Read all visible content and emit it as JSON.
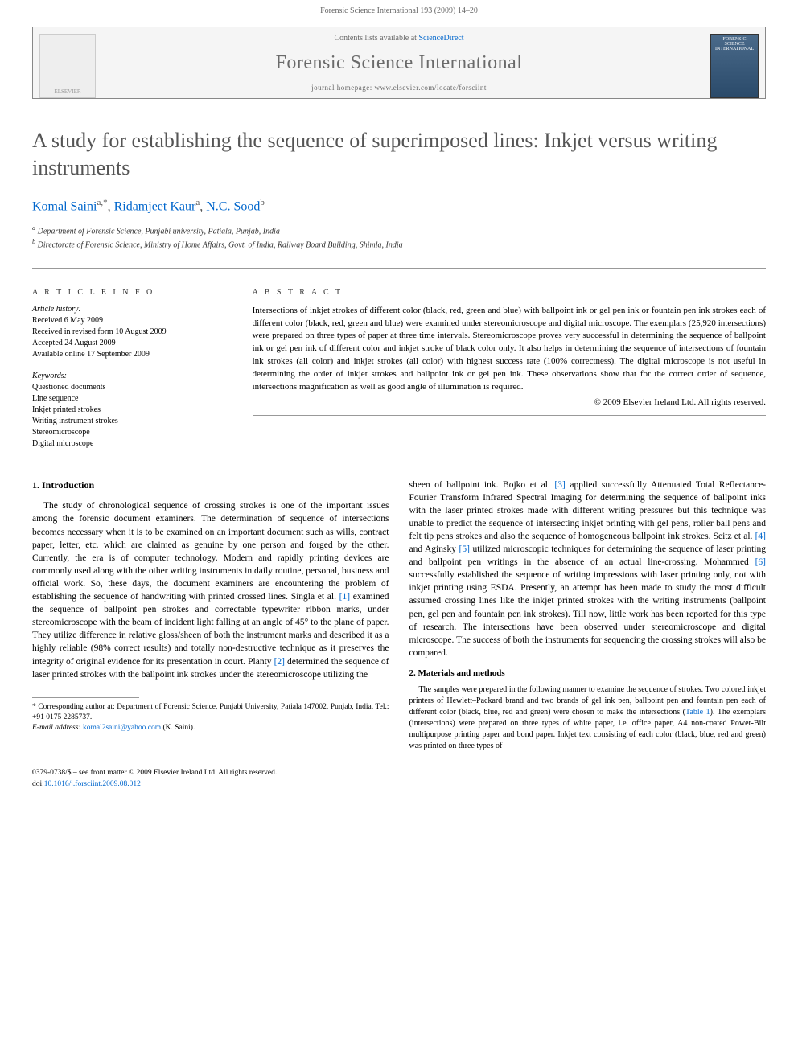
{
  "header": {
    "running_head": "Forensic Science International 193 (2009) 14–20",
    "contents_text": "Contents lists available at",
    "contents_link": "ScienceDirect",
    "journal_name": "Forensic Science International",
    "homepage_label": "journal homepage: www.elsevier.com/locate/forsciint",
    "elsevier_text": "ELSEVIER",
    "cover_text": "FORENSIC SCIENCE INTERNATIONAL"
  },
  "title": "A study for establishing the sequence of superimposed lines: Inkjet versus writing instruments",
  "authors": {
    "a1_name": "Komal Saini",
    "a1_sup": "a,*",
    "a2_name": "Ridamjeet Kaur",
    "a2_sup": "a",
    "a3_name": "N.C. Sood",
    "a3_sup": "b"
  },
  "affiliations": {
    "a": "Department of Forensic Science, Punjabi university, Patiala, Punjab, India",
    "b": "Directorate of Forensic Science, Ministry of Home Affairs, Govt. of India, Railway Board Building, Shimla, India"
  },
  "article_info": {
    "label": "A R T I C L E   I N F O",
    "history_label": "Article history:",
    "received": "Received 6 May 2009",
    "revised": "Received in revised form 10 August 2009",
    "accepted": "Accepted 24 August 2009",
    "online": "Available online 17 September 2009",
    "keywords_label": "Keywords:",
    "kw1": "Questioned documents",
    "kw2": "Line sequence",
    "kw3": "Inkjet printed strokes",
    "kw4": "Writing instrument strokes",
    "kw5": "Stereomicroscope",
    "kw6": "Digital microscope"
  },
  "abstract": {
    "label": "A B S T R A C T",
    "text": "Intersections of inkjet strokes of different color (black, red, green and blue) with ballpoint ink or gel pen ink or fountain pen ink strokes each of different color (black, red, green and blue) were examined under stereomicroscope and digital microscope. The exemplars (25,920 intersections) were prepared on three types of paper at three time intervals. Stereomicroscope proves very successful in determining the sequence of ballpoint ink or gel pen ink of different color and inkjet stroke of black color only. It also helps in determining the sequence of intersections of fountain ink strokes (all color) and inkjet strokes (all color) with highest success rate (100% correctness). The digital microscope is not useful in determining the order of inkjet strokes and ballpoint ink or gel pen ink. These observations show that for the correct order of sequence, intersections magnification as well as good angle of illumination is required.",
    "copyright": "© 2009 Elsevier Ireland Ltd. All rights reserved."
  },
  "body": {
    "intro_heading": "1. Introduction",
    "intro_p1a": "The study of chronological sequence of crossing strokes is one of the important issues among the forensic document examiners. The determination of sequence of intersections becomes necessary when it is to be examined on an important document such as wills, contract paper, letter, etc. which are claimed as genuine by one person and forged by the other. Currently, the era is of computer technology. Modern and rapidly printing devices are commonly used along with the other writing instruments in daily routine, personal, business and official work. So, these days, the document examiners are encountering the problem of establishing the sequence of handwriting with printed crossed lines. Singla et al. ",
    "ref1": "[1]",
    "intro_p1b": " examined the sequence of ballpoint pen strokes and correctable typewriter ribbon marks, under stereomicroscope with the beam of incident light falling at an angle of 45° to the plane of paper. They utilize difference in relative gloss/sheen of both the instrument marks and described it as a highly reliable (98% correct results) and totally non-destructive technique as it preserves the integrity of original evidence for its presentation in court. Planty ",
    "ref2": "[2]",
    "intro_p1c": " determined the sequence of laser printed strokes with the ballpoint ink strokes under the stereomicroscope utilizing the",
    "col2_p1a": "sheen of ballpoint ink. Bojko et al. ",
    "ref3": "[3]",
    "col2_p1b": " applied successfully Attenuated Total Reflectance-Fourier Transform Infrared Spectral Imaging for determining the sequence of ballpoint inks with the laser printed strokes made with different writing pressures but this technique was unable to predict the sequence of intersecting inkjet printing with gel pens, roller ball pens and felt tip pens strokes and also the sequence of homogeneous ballpoint ink strokes. Seitz et al. ",
    "ref4": "[4]",
    "col2_p1c": " and Aginsky ",
    "ref5": "[5]",
    "col2_p1d": " utilized microscopic techniques for determining the sequence of laser printing and ballpoint pen writings in the absence of an actual line-crossing. Mohammed ",
    "ref6": "[6]",
    "col2_p1e": " successfully established the sequence of writing impressions with laser printing only, not with inkjet printing using ESDA. Presently, an attempt has been made to study the most difficult assumed crossing lines like the inkjet printed strokes with the writing instruments (ballpoint pen, gel pen and fountain pen ink strokes). Till now, little work has been reported for this type of research. The intersections have been observed under stereomicroscope and digital microscope. The success of both the instruments for sequencing the crossing strokes will also be compared.",
    "methods_heading": "2. Materials and methods",
    "methods_p1a": "The samples were prepared in the following manner to examine the sequence of strokes. Two colored inkjet printers of Hewlett–Packard brand and two brands of gel ink pen, ballpoint pen and fountain pen each of different color (black, blue, red and green) were chosen to make the intersections (",
    "table_ref": "Table 1",
    "methods_p1b": "). The exemplars (intersections) were prepared on three types of white paper, i.e. office paper, A4 non-coated Power-Bilt multipurpose printing paper and bond paper. Inkjet text consisting of each color (black, blue, red and green) was printed on three types of"
  },
  "footnote": {
    "corr_label": "* Corresponding author at: Department of Forensic Science, Punjabi University, Patiala 147002, Punjab, India. Tel.: +91 0175 2285737.",
    "email_label": "E-mail address:",
    "email": "komal2saini@yahoo.com",
    "email_author": "(K. Saini)."
  },
  "doi": {
    "line1": "0379-0738/$ – see front matter © 2009 Elsevier Ireland Ltd. All rights reserved.",
    "line2_prefix": "doi:",
    "line2_link": "10.1016/j.forsciint.2009.08.012"
  }
}
